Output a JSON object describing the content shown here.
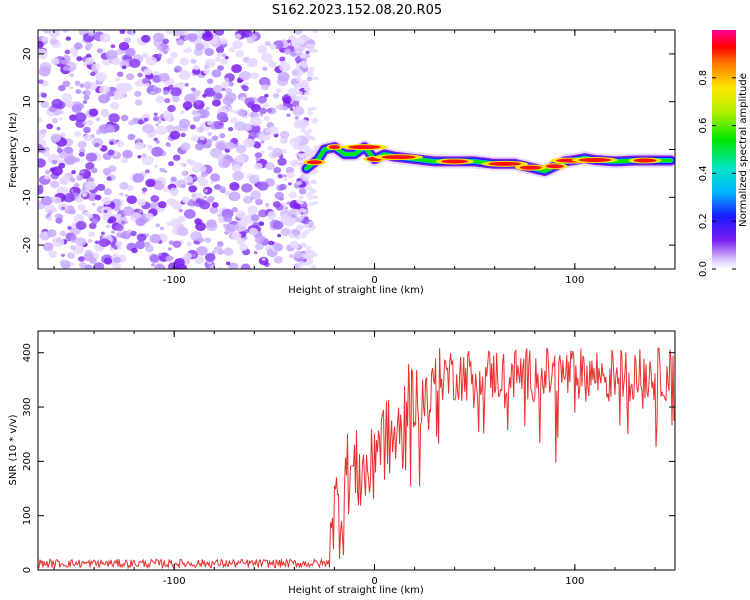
{
  "title": "S162.2023.152.08.20.R05",
  "colors": {
    "snr_line": "#e8302e",
    "noise_purple": "#7a1ef0",
    "axis": "#000000"
  },
  "chart_data": [
    {
      "type": "heatmap",
      "xlabel": "Height of straight line (km)",
      "ylabel": "Frequency (Hz)",
      "xlim": [
        -168,
        150
      ],
      "ylim": [
        -25,
        25
      ],
      "xticks": [
        -100,
        0,
        100
      ],
      "yticks": [
        -20,
        -10,
        0,
        10,
        20
      ],
      "colorbar": {
        "label": "Normalized spectral amplitude",
        "range": [
          0,
          1
        ],
        "ticks": [
          0.0,
          0.2,
          0.4,
          0.6,
          0.8
        ]
      },
      "noise_region_x": [
        -168,
        -35
      ],
      "signal_track": {
        "x": [
          -34,
          -28,
          -25,
          -20,
          -15,
          -10,
          -5,
          0,
          5,
          10,
          20,
          30,
          40,
          50,
          60,
          70,
          80,
          85,
          90,
          95,
          100,
          105,
          110,
          120,
          130,
          140,
          148
        ],
        "freq": [
          -4,
          -2,
          0,
          0.5,
          -1,
          -1,
          0.5,
          -2,
          -1,
          -1.5,
          -2,
          -2.5,
          -2.5,
          -2.5,
          -3,
          -3,
          -4,
          -4.5,
          -3.5,
          -2.5,
          -2.2,
          -1.8,
          -2.2,
          -2.5,
          -2.3,
          -2.3,
          -2.3
        ]
      },
      "peaks_x": [
        -30,
        -20,
        -5,
        0,
        12,
        40,
        65,
        78,
        90,
        98,
        110,
        135
      ]
    },
    {
      "type": "line",
      "xlabel": "Height of straight line (km)",
      "ylabel": "SNR (10 * v/v)",
      "xlim": [
        -168,
        150
      ],
      "ylim": [
        0,
        440
      ],
      "xticks": [
        -100,
        0,
        100
      ],
      "yticks": [
        0,
        100,
        200,
        300,
        400
      ],
      "series": [
        {
          "name": "SNR",
          "segments": [
            {
              "x": [
                -168,
                -22
              ],
              "base": 12,
              "noise": 8
            },
            {
              "x": [
                -22,
                -15
              ],
              "base": 110,
              "noise": 90
            },
            {
              "x": [
                -15,
                0
              ],
              "base": 180,
              "noise": 80
            },
            {
              "x": [
                0,
                15
              ],
              "base": 240,
              "noise": 80
            },
            {
              "x": [
                15,
                30
              ],
              "base": 320,
              "noise": 60
            },
            {
              "x": [
                30,
                150
              ],
              "base": 360,
              "noise": 50
            }
          ]
        }
      ]
    }
  ]
}
